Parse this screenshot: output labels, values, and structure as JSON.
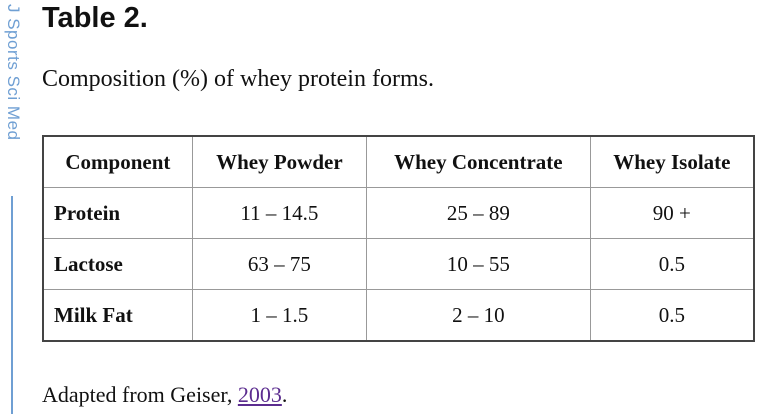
{
  "side_label": "J Sports Sci Med",
  "header": {
    "title": "Table 2.",
    "caption": "Composition (%) of whey protein forms."
  },
  "table": {
    "columns": [
      "Component",
      "Whey Powder",
      "Whey Concentrate",
      "Whey Isolate"
    ],
    "rows": [
      [
        "Protein",
        "11 – 14.5",
        "25 – 89",
        "90 +"
      ],
      [
        "Lactose",
        "63 – 75",
        "10 – 55",
        "0.5"
      ],
      [
        "Milk Fat",
        "1 – 1.5",
        "2 – 10",
        "0.5"
      ]
    ]
  },
  "footer": {
    "prefix": "Adapted from Geiser,",
    "link": "2003",
    "suffix": "."
  }
}
